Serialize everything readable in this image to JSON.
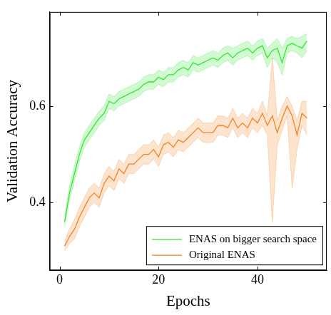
{
  "chart_data": {
    "type": "line",
    "x_label": "Epochs",
    "y_label": "Validation Accuracy",
    "x": [
      1,
      2,
      3,
      4,
      5,
      6,
      7,
      8,
      9,
      10,
      11,
      12,
      13,
      14,
      15,
      16,
      17,
      18,
      19,
      20,
      21,
      22,
      23,
      24,
      25,
      26,
      27,
      28,
      29,
      30,
      31,
      32,
      33,
      34,
      35,
      36,
      37,
      38,
      39,
      40,
      41,
      42,
      43,
      44,
      45,
      46,
      47,
      48,
      49,
      50
    ],
    "series": [
      {
        "name": "ENAS on bigger search space",
        "color": "#33e633",
        "values": [
          0.36,
          0.42,
          0.46,
          0.5,
          0.53,
          0.545,
          0.56,
          0.575,
          0.585,
          0.61,
          0.605,
          0.615,
          0.62,
          0.625,
          0.63,
          0.635,
          0.645,
          0.65,
          0.65,
          0.66,
          0.655,
          0.665,
          0.665,
          0.675,
          0.68,
          0.675,
          0.69,
          0.685,
          0.69,
          0.695,
          0.7,
          0.695,
          0.705,
          0.71,
          0.7,
          0.71,
          0.715,
          0.72,
          0.71,
          0.72,
          0.725,
          0.7,
          0.715,
          0.72,
          0.69,
          0.725,
          0.73,
          0.725,
          0.72,
          0.735
        ],
        "upper": [
          0.37,
          0.435,
          0.475,
          0.515,
          0.545,
          0.56,
          0.575,
          0.59,
          0.6,
          0.625,
          0.62,
          0.63,
          0.635,
          0.64,
          0.645,
          0.65,
          0.66,
          0.665,
          0.665,
          0.675,
          0.67,
          0.68,
          0.68,
          0.69,
          0.695,
          0.69,
          0.705,
          0.7,
          0.705,
          0.71,
          0.715,
          0.71,
          0.72,
          0.725,
          0.72,
          0.725,
          0.73,
          0.735,
          0.725,
          0.735,
          0.74,
          0.72,
          0.73,
          0.74,
          0.72,
          0.74,
          0.745,
          0.74,
          0.745,
          0.75
        ],
        "lower": [
          0.35,
          0.405,
          0.445,
          0.485,
          0.515,
          0.53,
          0.545,
          0.56,
          0.57,
          0.595,
          0.59,
          0.6,
          0.605,
          0.61,
          0.615,
          0.62,
          0.63,
          0.635,
          0.635,
          0.645,
          0.64,
          0.65,
          0.65,
          0.66,
          0.665,
          0.66,
          0.675,
          0.67,
          0.675,
          0.68,
          0.685,
          0.68,
          0.69,
          0.695,
          0.685,
          0.695,
          0.7,
          0.705,
          0.695,
          0.705,
          0.71,
          0.68,
          0.7,
          0.69,
          0.665,
          0.71,
          0.715,
          0.71,
          0.7,
          0.715
        ]
      },
      {
        "name": "Original ENAS",
        "color": "#f58220",
        "values": [
          0.31,
          0.33,
          0.345,
          0.37,
          0.39,
          0.41,
          0.42,
          0.41,
          0.44,
          0.455,
          0.445,
          0.47,
          0.46,
          0.48,
          0.48,
          0.49,
          0.5,
          0.5,
          0.51,
          0.495,
          0.52,
          0.525,
          0.515,
          0.53,
          0.525,
          0.535,
          0.545,
          0.555,
          0.545,
          0.545,
          0.545,
          0.56,
          0.56,
          0.555,
          0.575,
          0.555,
          0.565,
          0.555,
          0.575,
          0.565,
          0.585,
          0.56,
          0.58,
          0.545,
          0.575,
          0.6,
          0.58,
          0.54,
          0.585,
          0.575
        ],
        "upper": [
          0.32,
          0.345,
          0.365,
          0.39,
          0.41,
          0.43,
          0.44,
          0.43,
          0.46,
          0.475,
          0.465,
          0.49,
          0.48,
          0.5,
          0.5,
          0.51,
          0.52,
          0.52,
          0.53,
          0.515,
          0.54,
          0.545,
          0.535,
          0.55,
          0.545,
          0.555,
          0.565,
          0.575,
          0.565,
          0.565,
          0.565,
          0.58,
          0.58,
          0.575,
          0.595,
          0.575,
          0.585,
          0.575,
          0.595,
          0.585,
          0.61,
          0.58,
          0.7,
          0.57,
          0.6,
          0.62,
          0.6,
          0.57,
          0.61,
          0.61
        ],
        "lower": [
          0.3,
          0.315,
          0.325,
          0.35,
          0.37,
          0.39,
          0.4,
          0.39,
          0.42,
          0.435,
          0.425,
          0.45,
          0.44,
          0.46,
          0.46,
          0.47,
          0.48,
          0.48,
          0.49,
          0.475,
          0.5,
          0.505,
          0.495,
          0.51,
          0.505,
          0.515,
          0.525,
          0.535,
          0.525,
          0.525,
          0.525,
          0.54,
          0.54,
          0.535,
          0.555,
          0.535,
          0.545,
          0.535,
          0.555,
          0.545,
          0.56,
          0.54,
          0.36,
          0.52,
          0.55,
          0.58,
          0.43,
          0.51,
          0.56,
          0.54
        ]
      }
    ],
    "xlim": [
      -2,
      54
    ],
    "xticks": [
      0,
      20,
      40
    ],
    "ylim": [
      0.26,
      0.795
    ],
    "yticks": [
      0.4,
      0.6
    ],
    "grid": false,
    "legend": "lower right"
  }
}
